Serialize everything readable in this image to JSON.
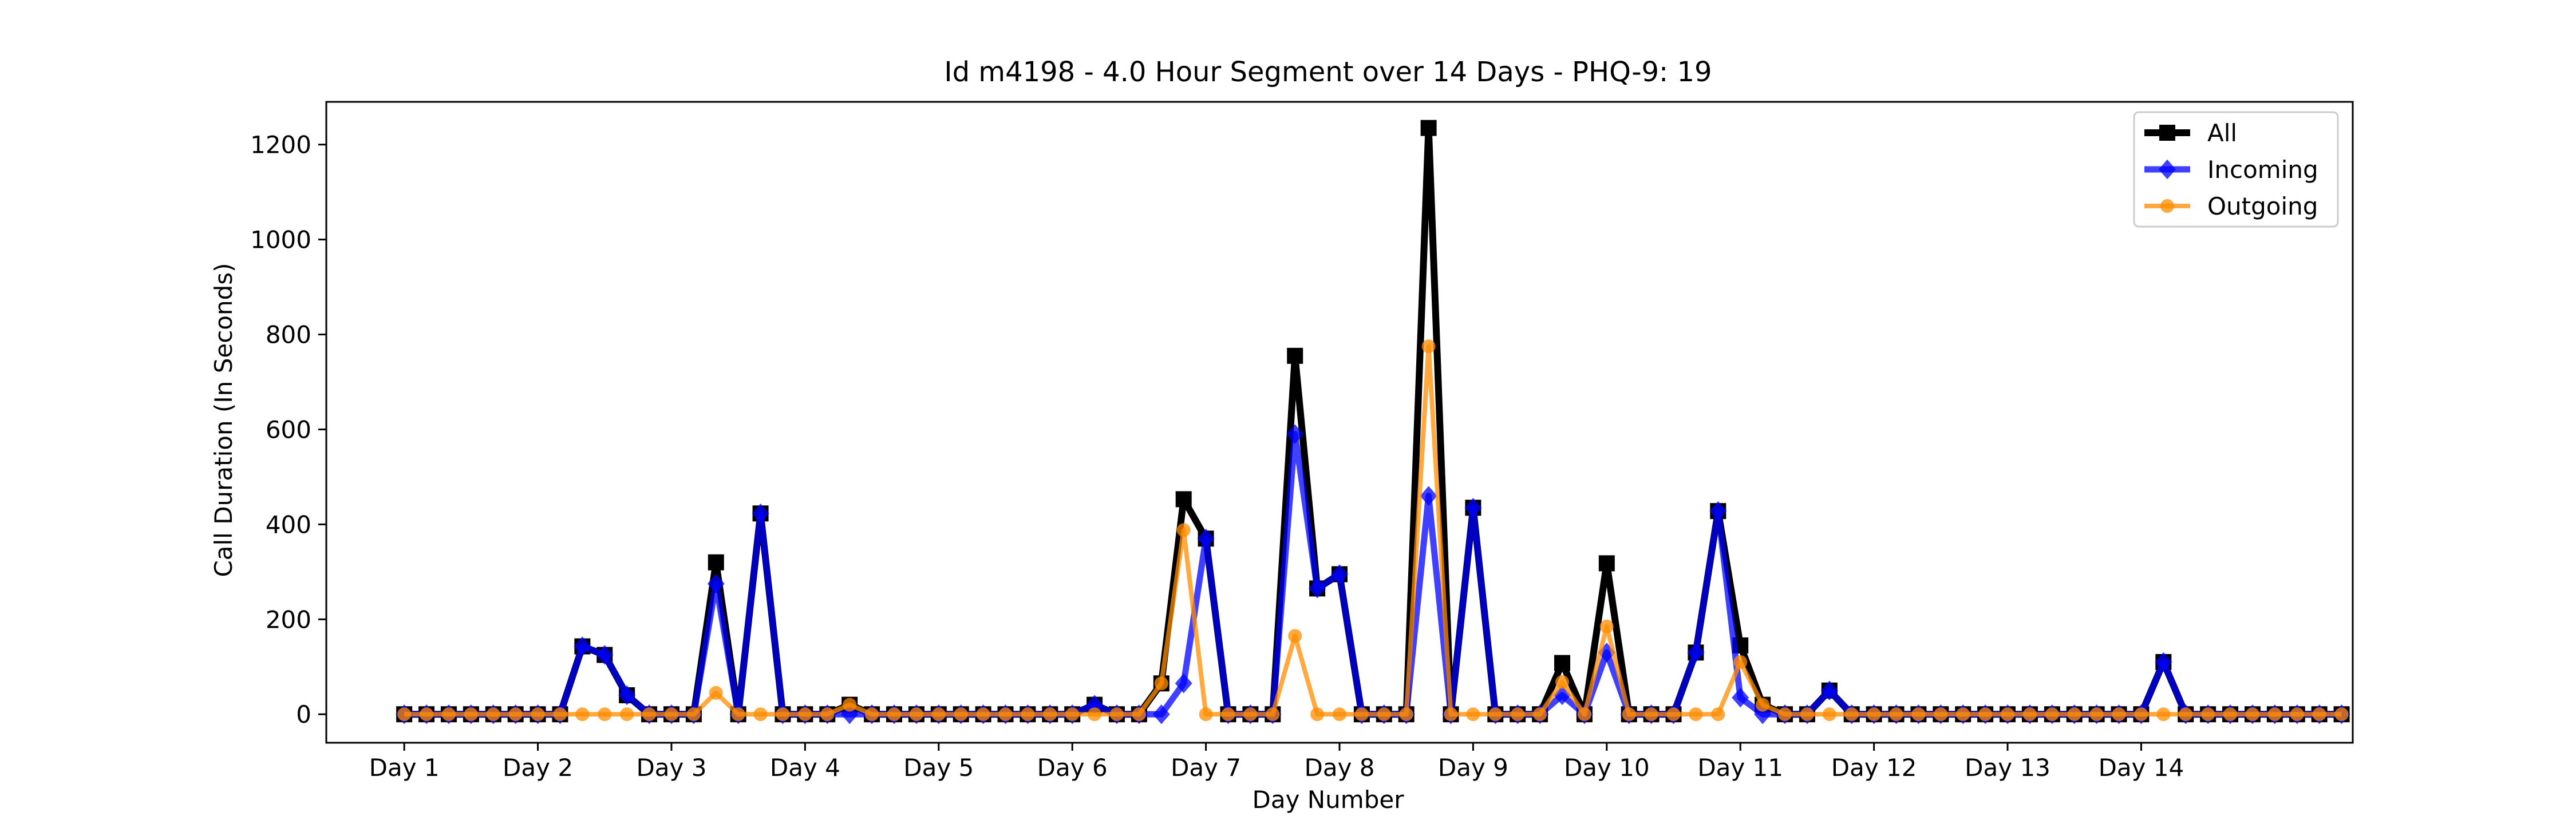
{
  "chart_data": {
    "type": "line",
    "title": "Id m4198 - 4.0 Hour Segment over 14 Days - PHQ-9: 19",
    "xlabel": "Day Number",
    "ylabel": "Call Duration (In Seconds)",
    "x_tick_labels": [
      "Day 1",
      "Day 2",
      "Day 3",
      "Day 4",
      "Day 5",
      "Day 6",
      "Day 7",
      "Day 8",
      "Day 9",
      "Day 10",
      "Day 11",
      "Day 12",
      "Day 13",
      "Day 14"
    ],
    "y_ticks": [
      0,
      200,
      400,
      600,
      800,
      1000,
      1200
    ],
    "ylim": [
      -60,
      1290
    ],
    "xlim": [
      -3.5,
      87.5
    ],
    "segments_per_day": 6,
    "grid": false,
    "legend_position": "top-right",
    "series": [
      {
        "name": "All",
        "color": "#000000",
        "marker": "square",
        "values": [
          0,
          0,
          0,
          0,
          0,
          0,
          0,
          0,
          143,
          125,
          40,
          0,
          0,
          0,
          320,
          0,
          423,
          0,
          0,
          0,
          20,
          0,
          0,
          0,
          0,
          0,
          0,
          0,
          0,
          0,
          0,
          20,
          0,
          0,
          65,
          453,
          370,
          0,
          0,
          0,
          755,
          265,
          295,
          0,
          0,
          0,
          1235,
          0,
          435,
          0,
          0,
          0,
          108,
          0,
          318,
          0,
          0,
          0,
          130,
          428,
          145,
          20,
          0,
          0,
          50,
          0,
          0,
          0,
          0,
          0,
          0,
          0,
          0,
          0,
          0,
          0,
          0,
          0,
          0,
          110,
          0,
          0,
          0,
          0,
          0,
          0,
          0,
          0
        ]
      },
      {
        "name": "Incoming",
        "color": "#0000ff",
        "marker": "diamond",
        "values": [
          0,
          0,
          0,
          0,
          0,
          0,
          0,
          0,
          143,
          125,
          40,
          0,
          0,
          0,
          275,
          0,
          423,
          0,
          0,
          0,
          0,
          0,
          0,
          0,
          0,
          0,
          0,
          0,
          0,
          0,
          0,
          20,
          0,
          0,
          0,
          65,
          370,
          0,
          0,
          0,
          590,
          265,
          295,
          0,
          0,
          0,
          460,
          0,
          435,
          0,
          0,
          0,
          40,
          0,
          130,
          0,
          0,
          0,
          130,
          428,
          35,
          0,
          0,
          0,
          50,
          0,
          0,
          0,
          0,
          0,
          0,
          0,
          0,
          0,
          0,
          0,
          0,
          0,
          0,
          110,
          0,
          0,
          0,
          0,
          0,
          0,
          0,
          0
        ]
      },
      {
        "name": "Outgoing",
        "color": "#ff8c00",
        "marker": "circle",
        "values": [
          0,
          0,
          0,
          0,
          0,
          0,
          0,
          0,
          0,
          0,
          0,
          0,
          0,
          0,
          45,
          0,
          0,
          0,
          0,
          0,
          20,
          0,
          0,
          0,
          0,
          0,
          0,
          0,
          0,
          0,
          0,
          0,
          0,
          0,
          65,
          388,
          0,
          0,
          0,
          0,
          165,
          0,
          0,
          0,
          0,
          0,
          775,
          0,
          0,
          0,
          0,
          0,
          68,
          0,
          185,
          0,
          0,
          0,
          0,
          0,
          110,
          20,
          0,
          0,
          0,
          0,
          0,
          0,
          0,
          0,
          0,
          0,
          0,
          0,
          0,
          0,
          0,
          0,
          0,
          0,
          0,
          0,
          0,
          0,
          0,
          0,
          0,
          0
        ]
      }
    ]
  }
}
